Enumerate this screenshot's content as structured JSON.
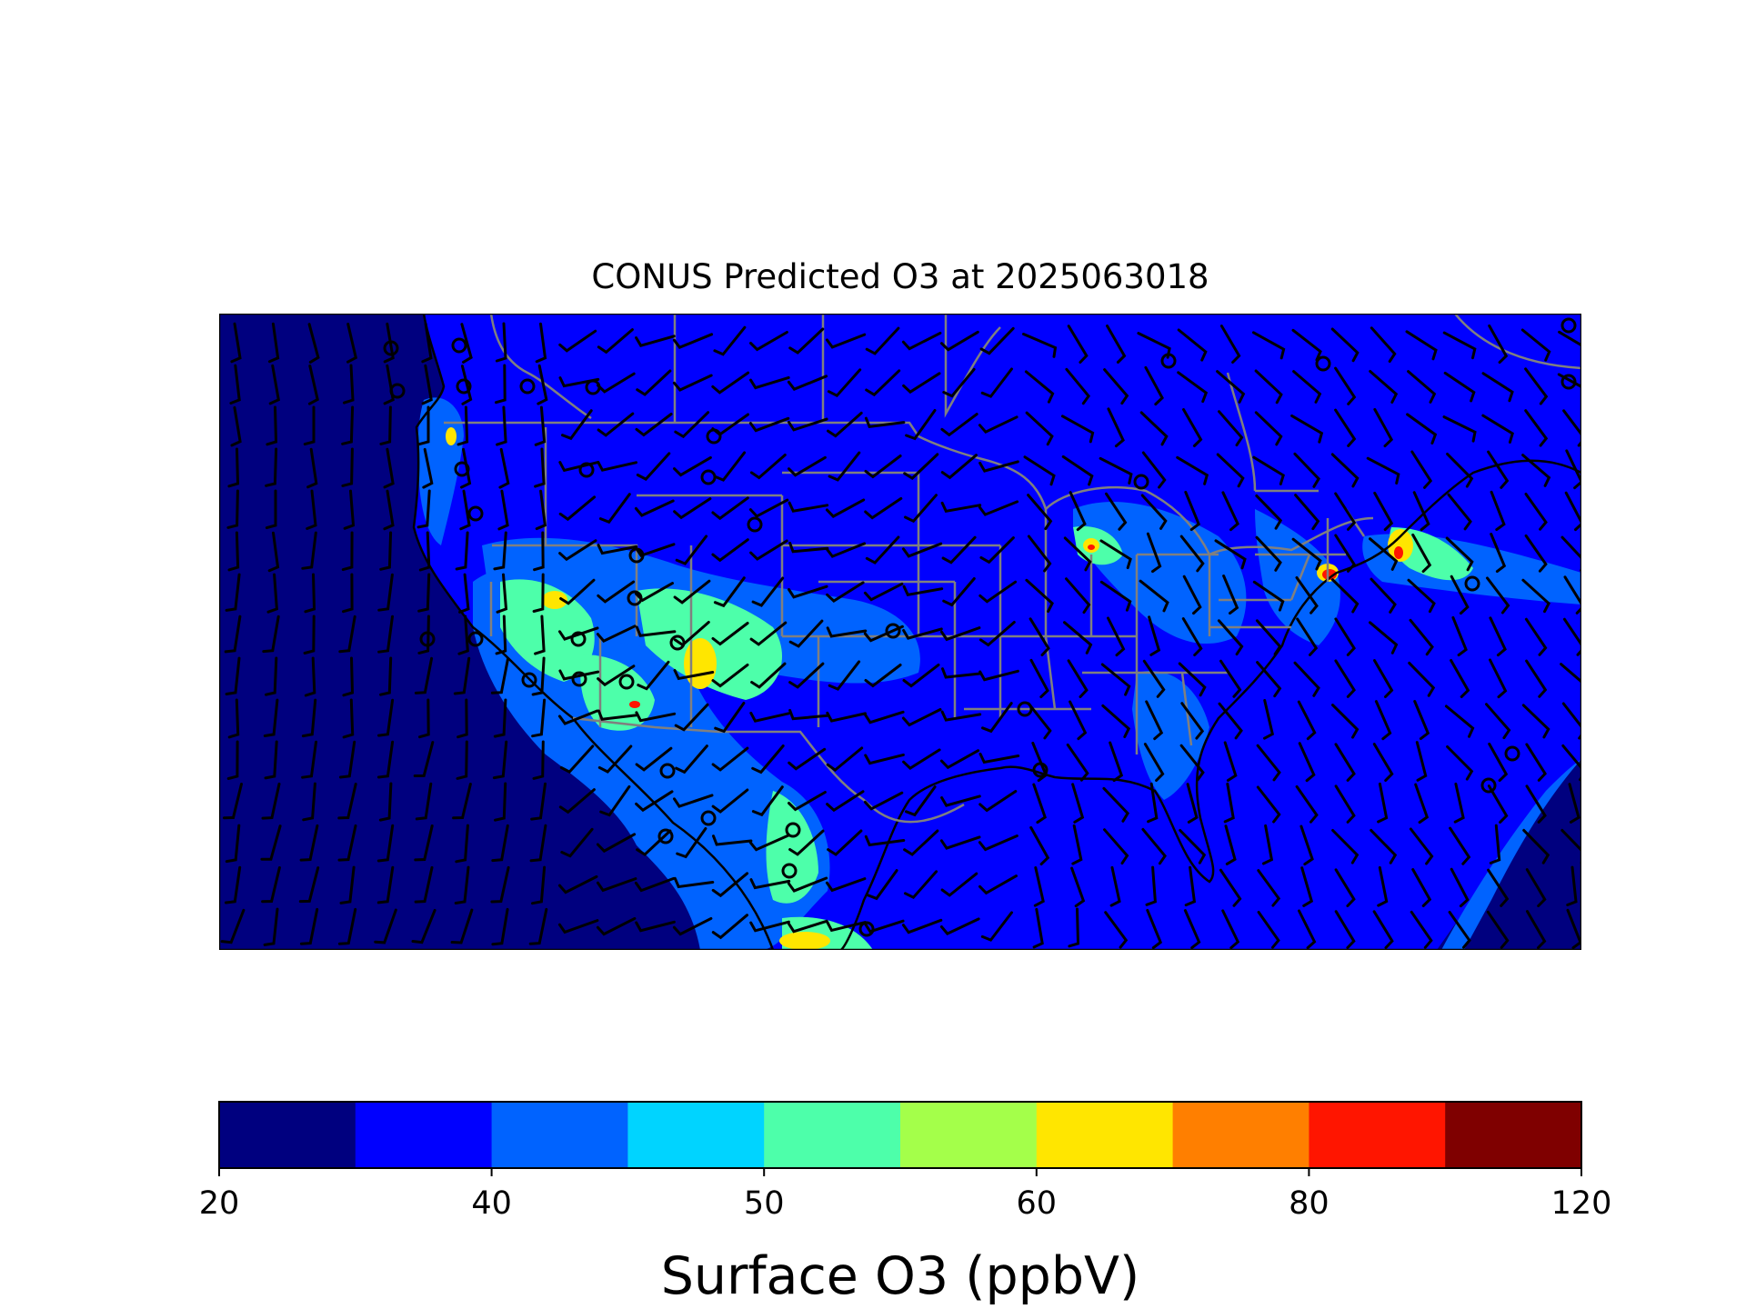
{
  "title": "CONUS Predicted O3 at 2025063018",
  "colorbar": {
    "label": "Surface O3 (ppbV)",
    "tick_labels": [
      "20",
      "40",
      "50",
      "60",
      "80",
      "120"
    ],
    "levels": [
      20,
      30,
      40,
      45,
      50,
      55,
      60,
      70,
      80,
      100,
      120
    ],
    "colors": [
      "#00007f",
      "#0000ff",
      "#0063ff",
      "#00d4ff",
      "#4dffaa",
      "#a4ff4a",
      "#ffe600",
      "#ff7f00",
      "#ff1500",
      "#7f0000"
    ]
  },
  "map": {
    "ocean_color": "#00007f",
    "land_color": "#0000ff",
    "border_color": "#808080",
    "coast_color": "#000000"
  }
}
